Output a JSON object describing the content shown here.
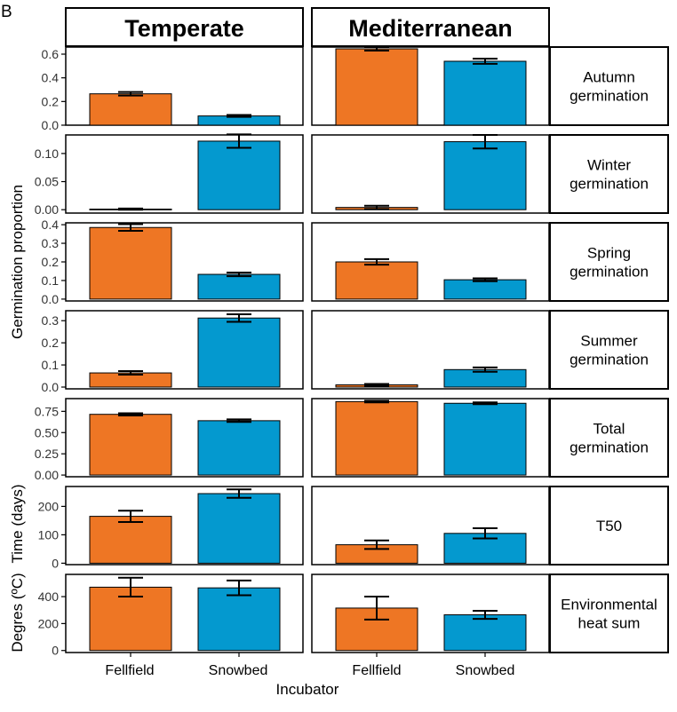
{
  "panel_tag": "B",
  "columns": [
    "Temperate",
    "Mediterranean"
  ],
  "x_axis_label": "Incubator",
  "y_axis_labels": {
    "germination": "Germination proportion",
    "time": "Time (days)",
    "heat": "Degres (ºC)"
  },
  "colors": {
    "Fellfield": "#ee7624",
    "Snowbed": "#0499cf",
    "border": "#000000"
  },
  "chart_data": {
    "type": "bar",
    "categories": [
      "Fellfield",
      "Snowbed"
    ],
    "facets": [
      {
        "row_label": [
          "Autumn",
          "germination"
        ],
        "ylim": [
          0,
          0.66
        ],
        "ticks": [
          "0.0",
          "0.2",
          "0.4",
          "0.6"
        ],
        "tick_values": [
          0,
          0.2,
          0.4,
          0.6
        ],
        "panels": {
          "Temperate": {
            "values": [
              0.265,
              0.078
            ],
            "errors": [
              0.015,
              0.008
            ]
          },
          "Mediterranean": {
            "values": [
              0.645,
              0.54
            ],
            "errors": [
              0.015,
              0.022
            ]
          }
        }
      },
      {
        "row_label": [
          "Winter",
          "germination"
        ],
        "ylim": [
          -0.006,
          0.133
        ],
        "ticks": [
          "0.00",
          "0.05",
          "0.10"
        ],
        "tick_values": [
          0,
          0.05,
          0.1
        ],
        "panels": {
          "Temperate": {
            "values": [
              0.001,
              0.122
            ],
            "errors": [
              0.001,
              0.012
            ]
          },
          "Mediterranean": {
            "values": [
              0.004,
              0.121
            ],
            "errors": [
              0.003,
              0.012
            ]
          }
        }
      },
      {
        "row_label": [
          "Spring",
          "germination"
        ],
        "ylim": [
          -0.01,
          0.41
        ],
        "ticks": [
          "0.0",
          "0.1",
          "0.2",
          "0.3",
          "0.4"
        ],
        "tick_values": [
          0,
          0.1,
          0.2,
          0.3,
          0.4
        ],
        "panels": {
          "Temperate": {
            "values": [
              0.385,
              0.133
            ],
            "errors": [
              0.018,
              0.01
            ]
          },
          "Mediterranean": {
            "values": [
              0.2,
              0.104
            ],
            "errors": [
              0.015,
              0.008
            ]
          }
        }
      },
      {
        "row_label": [
          "Summer",
          "germination"
        ],
        "ylim": [
          -0.008,
          0.345
        ],
        "ticks": [
          "0.0",
          "0.1",
          "0.2",
          "0.3"
        ],
        "tick_values": [
          0,
          0.1,
          0.2,
          0.3
        ],
        "panels": {
          "Temperate": {
            "values": [
              0.064,
              0.312
            ],
            "errors": [
              0.008,
              0.017
            ]
          },
          "Mediterranean": {
            "values": [
              0.01,
              0.079
            ],
            "errors": [
              0.004,
              0.01
            ]
          }
        }
      },
      {
        "row_label": [
          "Total",
          "germination"
        ],
        "ylim": [
          -0.02,
          0.9
        ],
        "ticks": [
          "0.00",
          "0.25",
          "0.50",
          "0.75"
        ],
        "tick_values": [
          0,
          0.25,
          0.5,
          0.75
        ],
        "panels": {
          "Temperate": {
            "values": [
              0.715,
              0.64
            ],
            "errors": [
              0.013,
              0.015
            ]
          },
          "Mediterranean": {
            "values": [
              0.865,
              0.845
            ],
            "errors": [
              0.01,
              0.01
            ]
          }
        }
      },
      {
        "row_label": [
          "T50"
        ],
        "ylim": [
          -5,
          270
        ],
        "ticks": [
          "0",
          "100",
          "200"
        ],
        "tick_values": [
          0,
          100,
          200
        ],
        "panels": {
          "Temperate": {
            "values": [
              165,
              245
            ],
            "errors": [
              20,
              15
            ]
          },
          "Mediterranean": {
            "values": [
              65,
              105
            ],
            "errors": [
              15,
              18
            ]
          }
        }
      },
      {
        "row_label": [
          "Environmental",
          "heat sum"
        ],
        "ylim": [
          -15,
          565
        ],
        "ticks": [
          "0",
          "200",
          "400"
        ],
        "tick_values": [
          0,
          200,
          400
        ],
        "panels": {
          "Temperate": {
            "values": [
              470,
              465
            ],
            "errors": [
              70,
              55
            ]
          },
          "Mediterranean": {
            "values": [
              315,
              265
            ],
            "errors": [
              85,
              30
            ]
          }
        }
      }
    ]
  }
}
